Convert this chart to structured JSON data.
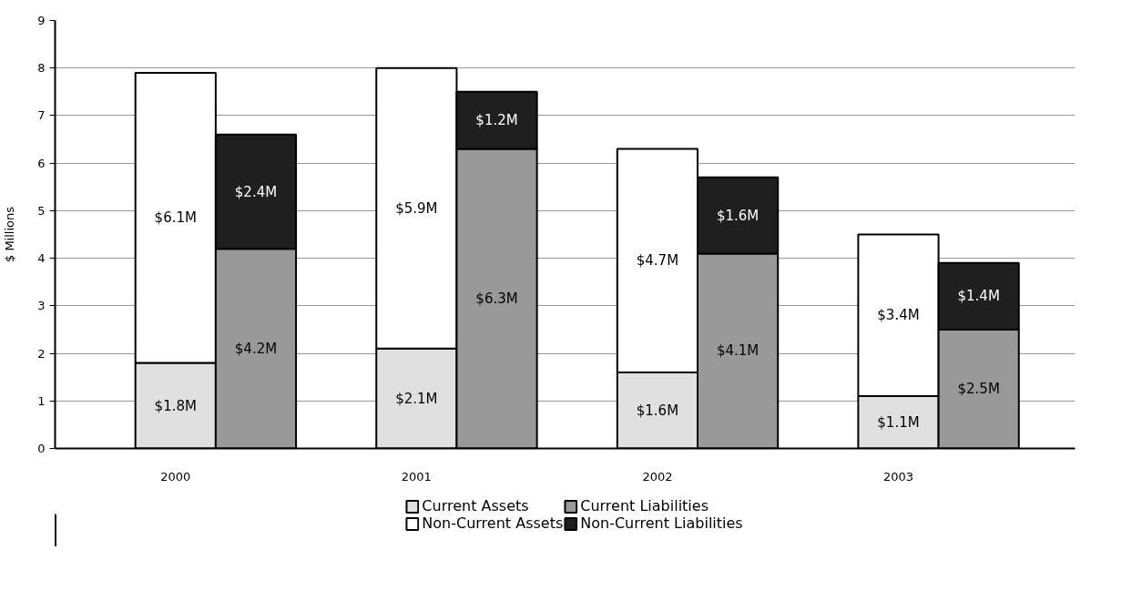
{
  "chart_data": {
    "type": "bar",
    "stacked": true,
    "ylabel": "$ Millions",
    "categories": [
      "2000",
      null,
      null,
      "2001",
      null,
      null,
      "2002",
      null,
      null,
      "2003",
      null
    ],
    "series": [
      {
        "name": "Current Assets",
        "color": "#e0e0e0",
        "values": [
          1.8,
          null,
          null,
          2.1,
          null,
          null,
          1.6,
          null,
          null,
          1.1,
          null
        ],
        "value_labels": [
          "$1.8M",
          null,
          null,
          "$2.1M",
          null,
          null,
          "$1.6M",
          null,
          null,
          "$1.1M",
          null
        ]
      },
      {
        "name": "Non-Current Assets",
        "color": "#ffffff",
        "values": [
          6.1,
          null,
          null,
          5.9,
          null,
          null,
          4.7,
          null,
          null,
          3.4,
          null
        ],
        "value_labels": [
          "$6.1M",
          null,
          null,
          "$5.9M",
          null,
          null,
          "$4.7M",
          null,
          null,
          "$3.4M",
          null
        ]
      },
      {
        "name": "Current Liabilities",
        "color": "#999999",
        "values": [
          null,
          4.2,
          null,
          null,
          6.3,
          null,
          null,
          4.1,
          null,
          null,
          2.5
        ],
        "value_labels": [
          null,
          "$4.2M",
          null,
          null,
          "$6.3M",
          null,
          null,
          "$4.1M",
          null,
          null,
          "$2.5M"
        ]
      },
      {
        "name": "Non-Current Liabilities",
        "color": "#1f1f1f",
        "values": [
          null,
          2.4,
          null,
          null,
          1.2,
          null,
          null,
          1.6,
          null,
          null,
          1.4
        ],
        "value_labels": [
          null,
          "$2.4M",
          null,
          null,
          "$1.2M",
          null,
          null,
          "$1.6M",
          null,
          null,
          "$1.4M"
        ]
      }
    ],
    "ylim": [
      0,
      9
    ],
    "yticks": [
      0,
      1,
      2,
      3,
      4,
      5,
      6,
      7,
      8,
      9
    ],
    "grid": "y",
    "legend": "bottom"
  }
}
